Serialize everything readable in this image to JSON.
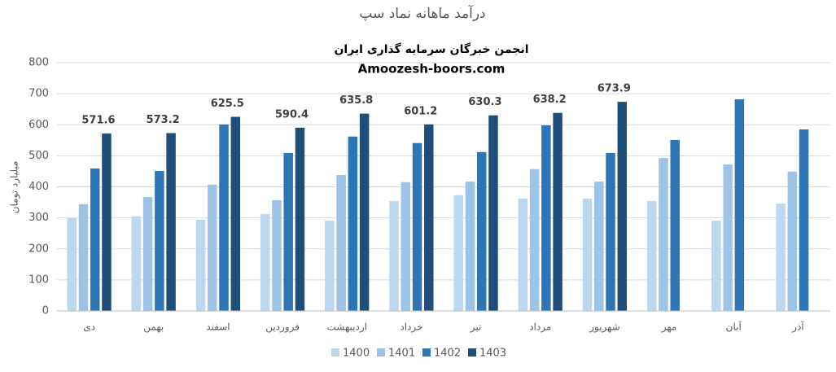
{
  "chart_data": {
    "type": "bar",
    "title": "درآمد ماهانه نماد سپ",
    "annotations": [
      "انجمن خبرگان سرمایه گذاری ایران",
      "Amoozesh-boors.com"
    ],
    "y_label": "میلیارد تومان",
    "categories": [
      "دی",
      "بهمن",
      "اسفند",
      "فروردین",
      "اردیبهشت",
      "خرداد",
      "تیر",
      "مرداد",
      "شهریور",
      "مهر",
      "آبان",
      "آذر"
    ],
    "series": [
      {
        "name": "1400",
        "color": "#bdd7ee",
        "values": [
          299,
          305,
          294,
          312,
          291,
          354,
          373,
          362,
          362,
          354,
          291,
          346
        ]
      },
      {
        "name": "1401",
        "color": "#9dc3e6",
        "values": [
          344,
          367,
          407,
          357,
          438,
          415,
          417,
          457,
          417,
          493,
          472,
          449
        ]
      },
      {
        "name": "1402",
        "color": "#2e75b6",
        "values": [
          459,
          451,
          601,
          509,
          562,
          541,
          512,
          598,
          509,
          551,
          682,
          585
        ]
      },
      {
        "name": "1403",
        "color": "#1f4e79",
        "values": [
          571.6,
          573.2,
          625.5,
          590.4,
          635.8,
          601.2,
          630.3,
          638.2,
          673.9,
          null,
          null,
          null
        ]
      }
    ],
    "data_labels_series": 3,
    "ylim": [
      0,
      800
    ],
    "yticks": [
      0,
      100,
      200,
      300,
      400,
      500,
      600,
      700,
      800
    ],
    "grid": true,
    "legend": "bottom"
  }
}
